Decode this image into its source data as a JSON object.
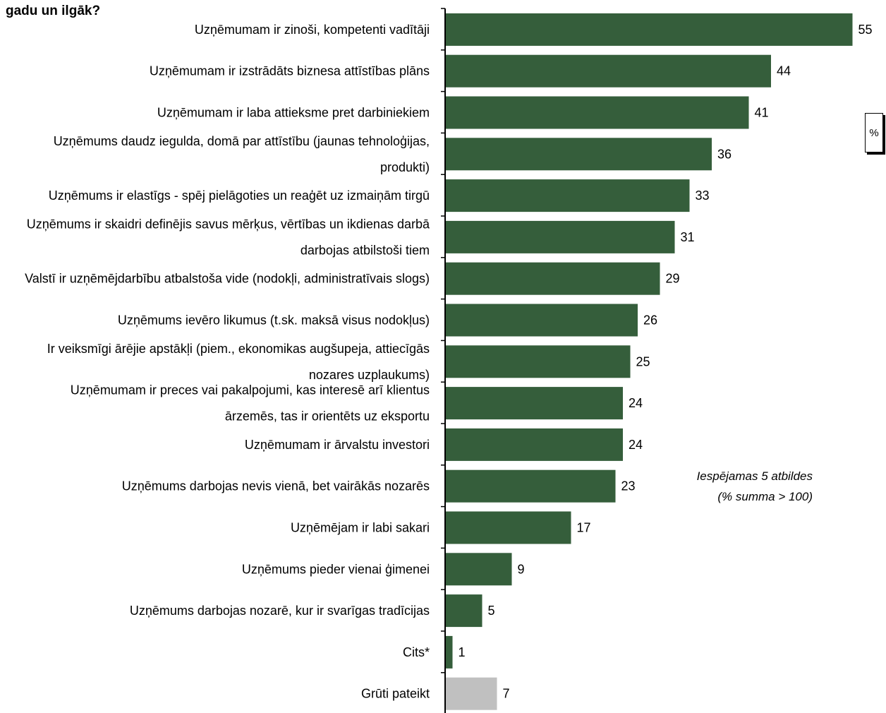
{
  "title": "gadu un ilgāk?",
  "unit": "%",
  "note": [
    "Iespējamas 5 atbildes",
    "(% summa > 100)"
  ],
  "colors": {
    "bar": "#355E3B",
    "bar_other": "#C0C0C0",
    "axis": "#000000"
  },
  "chart_data": {
    "type": "bar",
    "orientation": "horizontal",
    "categories": [
      [
        "Uzņēmumam ir zinoši, kompetenti vadītāji"
      ],
      [
        "Uzņēmumam ir izstrādāts biznesa attīstības plāns"
      ],
      [
        "Uzņēmumam ir laba attieksme pret darbiniekiem"
      ],
      [
        "Uzņēmums daudz iegulda, domā par attīstību (jaunas tehnoloģijas,",
        "produkti)"
      ],
      [
        "Uzņēmums ir elastīgs - spēj pielāgoties un reaģēt uz izmaiņām tirgū"
      ],
      [
        "Uzņēmums ir skaidri definējis savus mērķus, vērtības un ikdienas darbā",
        "darbojas atbilstoši tiem"
      ],
      [
        "Valstī ir uzņēmējdarbību atbalstoša vide (nodokļi, administratīvais slogs)"
      ],
      [
        "Uzņēmums ievēro likumus (t.sk. maksā visus nodokļus)"
      ],
      [
        "Ir veiksmīgi ārējie apstākļi (piem., ekonomikas augšupeja, attiecīgās",
        "nozares uzplaukums)"
      ],
      [
        "Uzņēmumam ir preces vai pakalpojumi, kas interesē arī klientus",
        "ārzemēs, tas ir orientēts uz eksportu"
      ],
      [
        "Uzņēmumam ir ārvalstu investori"
      ],
      [
        "Uzņēmums darbojas nevis vienā, bet vairākās nozarēs"
      ],
      [
        "Uzņēmējam ir labi sakari"
      ],
      [
        "Uzņēmums pieder vienai ģimenei"
      ],
      [
        "Uzņēmums darbojas nozarē, kur ir svarīgas tradīcijas"
      ],
      [
        "Cits*"
      ],
      [
        "Grūti pateikt"
      ]
    ],
    "values": [
      55,
      44,
      41,
      36,
      33,
      31,
      29,
      26,
      25,
      24,
      24,
      23,
      17,
      9,
      5,
      1,
      7
    ],
    "highlight_last": true,
    "xlim": [
      0,
      100
    ],
    "grid": false,
    "legend": "none"
  }
}
